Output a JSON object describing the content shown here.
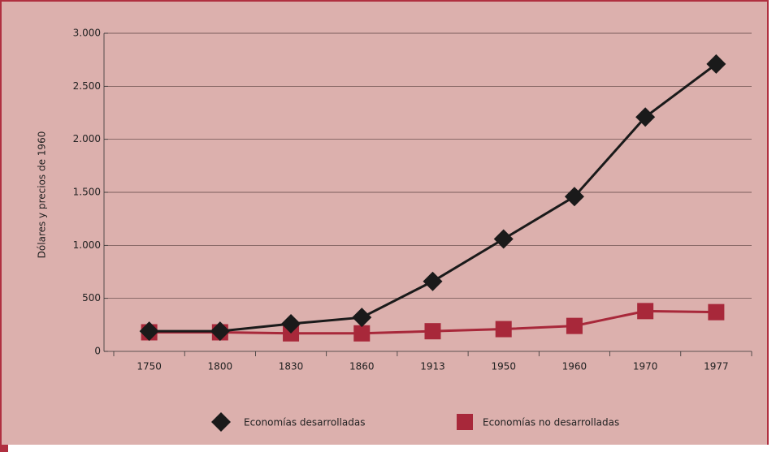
{
  "chart_data": {
    "type": "line",
    "y_label": "Dólares y precios de 1960",
    "categories": [
      "1750",
      "1800",
      "1830",
      "1860",
      "1913",
      "1950",
      "1960",
      "1970",
      "1977"
    ],
    "series": [
      {
        "name": "Economías desarrolladas",
        "color": "#1a1a1a",
        "marker": "diamond",
        "values": [
          190,
          190,
          260,
          320,
          660,
          1060,
          1460,
          2210,
          2710
        ]
      },
      {
        "name": "Economías no desarrolladas",
        "color": "#a8283a",
        "marker": "square",
        "values": [
          180,
          180,
          170,
          170,
          190,
          210,
          240,
          380,
          370
        ]
      }
    ],
    "ylim": [
      0,
      3000
    ],
    "yticks": [
      0,
      500,
      {
        "value": 1000,
        "label": "1.000"
      },
      {
        "value": 1500,
        "label": "1.500"
      },
      {
        "value": 2000,
        "label": "2.000"
      },
      {
        "value": 2500,
        "label": "2.500"
      },
      {
        "value": 3000,
        "label": "3.000"
      }
    ],
    "grid": true
  }
}
